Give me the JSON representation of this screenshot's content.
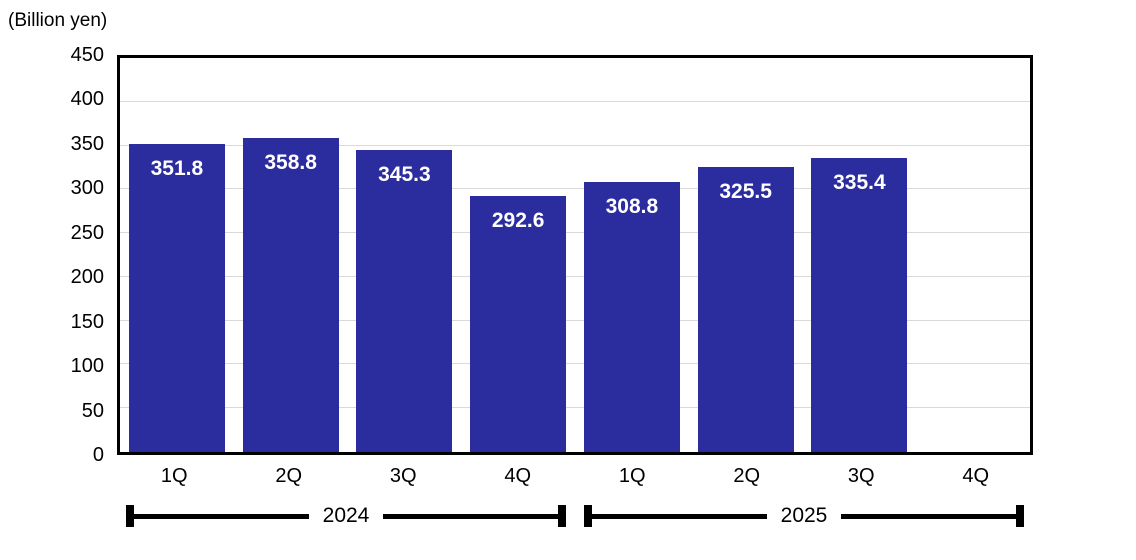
{
  "chart_data": {
    "type": "bar",
    "title": "",
    "unit_label": "(Billion yen)",
    "categories": [
      "1Q",
      "2Q",
      "3Q",
      "4Q",
      "1Q",
      "2Q",
      "3Q",
      "4Q"
    ],
    "values": [
      351.8,
      358.8,
      345.3,
      292.6,
      308.8,
      325.5,
      335.4,
      null
    ],
    "value_labels": [
      "351.8",
      "358.8",
      "345.3",
      "292.6",
      "308.8",
      "325.5",
      "335.4"
    ],
    "year_groups": [
      {
        "label": "2024",
        "start": 0,
        "end": 3
      },
      {
        "label": "2025",
        "start": 4,
        "end": 7
      }
    ],
    "ylim": [
      0,
      450
    ],
    "ytick_step": 50,
    "ytick_labels": [
      "0",
      "50",
      "100",
      "150",
      "200",
      "250",
      "300",
      "350",
      "400",
      "450"
    ],
    "grid": true,
    "legend": "none",
    "colors": {
      "bar": "#2B2C9E",
      "gridline": "#D9D9D9",
      "value_label": "#FFFFFF",
      "axis_border": "#000000",
      "text": "#000000"
    }
  }
}
